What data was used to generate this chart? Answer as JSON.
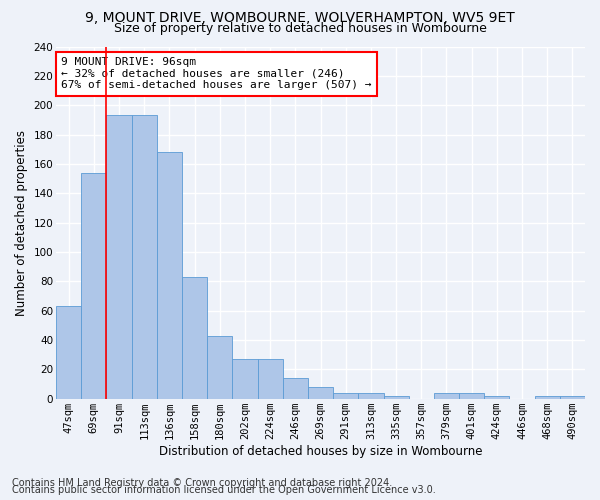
{
  "title1": "9, MOUNT DRIVE, WOMBOURNE, WOLVERHAMPTON, WV5 9ET",
  "title2": "Size of property relative to detached houses in Wombourne",
  "xlabel": "Distribution of detached houses by size in Wombourne",
  "ylabel": "Number of detached properties",
  "bin_labels": [
    "47sqm",
    "69sqm",
    "91sqm",
    "113sqm",
    "136sqm",
    "158sqm",
    "180sqm",
    "202sqm",
    "224sqm",
    "246sqm",
    "269sqm",
    "291sqm",
    "313sqm",
    "335sqm",
    "357sqm",
    "379sqm",
    "401sqm",
    "424sqm",
    "446sqm",
    "468sqm",
    "490sqm"
  ],
  "bar_heights": [
    63,
    154,
    193,
    193,
    168,
    83,
    43,
    27,
    27,
    14,
    8,
    4,
    4,
    2,
    0,
    4,
    4,
    2,
    0,
    2,
    2
  ],
  "bar_color": "#aec6e8",
  "bar_edge_color": "#5b9bd5",
  "highlight_line_index": 2,
  "annotation_text": "9 MOUNT DRIVE: 96sqm\n← 32% of detached houses are smaller (246)\n67% of semi-detached houses are larger (507) →",
  "annotation_box_color": "white",
  "annotation_box_edge": "red",
  "ylim": [
    0,
    240
  ],
  "yticks": [
    0,
    20,
    40,
    60,
    80,
    100,
    120,
    140,
    160,
    180,
    200,
    220,
    240
  ],
  "footer1": "Contains HM Land Registry data © Crown copyright and database right 2024.",
  "footer2": "Contains public sector information licensed under the Open Government Licence v3.0.",
  "background_color": "#eef2f9",
  "grid_color": "white",
  "title1_fontsize": 10,
  "title2_fontsize": 9,
  "axis_label_fontsize": 8.5,
  "tick_fontsize": 7.5,
  "annotation_fontsize": 8,
  "footer_fontsize": 7
}
